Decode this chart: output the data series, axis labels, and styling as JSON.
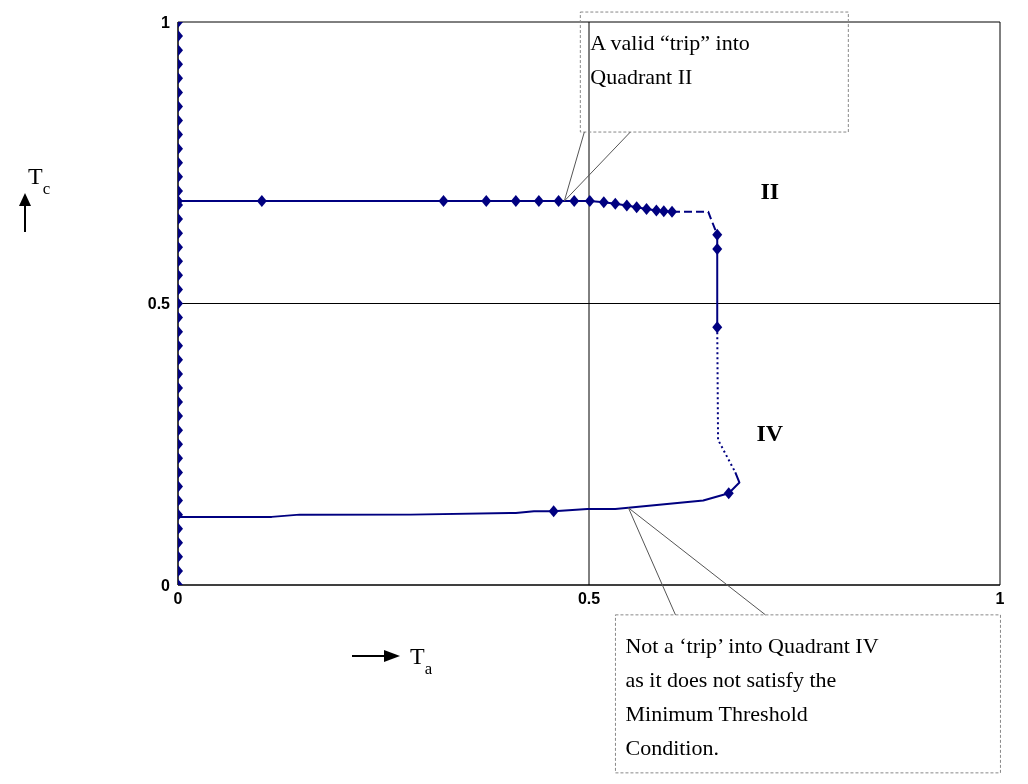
{
  "chart_data": {
    "type": "line",
    "xlabel": "T$_{a}$",
    "ylabel": "T$_{c}$",
    "xlim": [
      0,
      1
    ],
    "ylim": [
      0,
      1
    ],
    "xticks": [
      0,
      0.5,
      1
    ],
    "yticks": [
      0,
      0.5,
      1
    ],
    "grid": true,
    "series": [
      {
        "type": "scatter",
        "color": "#000080",
        "marker": "diamond",
        "x": [
          0,
          0,
          0,
          0,
          0,
          0,
          0,
          0,
          0,
          0,
          0,
          0,
          0,
          0,
          0,
          0,
          0,
          0,
          0,
          0,
          0,
          0,
          0,
          0,
          0,
          0,
          0,
          0,
          0,
          0,
          0,
          0,
          0,
          0,
          0,
          0,
          0,
          0,
          0,
          0,
          0
        ],
        "values": [
          0,
          0.025,
          0.05,
          0.075,
          0.1,
          0.125,
          0.15,
          0.175,
          0.2,
          0.225,
          0.25,
          0.275,
          0.3,
          0.325,
          0.35,
          0.375,
          0.4,
          0.425,
          0.45,
          0.475,
          0.5,
          0.525,
          0.55,
          0.575,
          0.6,
          0.625,
          0.65,
          0.675,
          0.7,
          0.725,
          0.75,
          0.775,
          0.8,
          0.825,
          0.85,
          0.875,
          0.9,
          0.925,
          0.95,
          0.975,
          1
        ]
      },
      {
        "color": "#000080",
        "marker": "diamond",
        "line_style": "solid",
        "x": [
          0,
          0.102,
          0.323,
          0.375,
          0.411,
          0.439,
          0.463,
          0.482,
          0.501,
          0.518,
          0.532,
          0.546,
          0.558,
          0.57,
          0.582,
          0.591,
          0.601
        ],
        "values": [
          0.682,
          0.682,
          0.682,
          0.682,
          0.682,
          0.682,
          0.682,
          0.682,
          0.682,
          0.68,
          0.677,
          0.674,
          0.671,
          0.668,
          0.665,
          0.664,
          0.663
        ]
      },
      {
        "type": "line",
        "color": "#000080",
        "marker": "none",
        "line_style": "dashed",
        "x": [
          0.601,
          0.645,
          0.656
        ],
        "values": [
          0.663,
          0.663,
          0.622
        ]
      },
      {
        "type": "line",
        "color": "#000080",
        "marker": "diamond",
        "line_style": "solid",
        "x": [
          0.656,
          0.656,
          0.656
        ],
        "values": [
          0.622,
          0.597,
          0.458
        ]
      },
      {
        "type": "line",
        "color": "#000080",
        "marker": "none",
        "line_style": "dotted",
        "x": [
          0.656,
          0.657,
          0.678
        ],
        "values": [
          0.458,
          0.258,
          0.2
        ]
      },
      {
        "type": "line",
        "color": "#000080",
        "marker": "none",
        "line_style": "solid",
        "x": [
          0.678,
          0.683,
          0.67,
          0.639,
          0.532,
          0.498,
          0.457,
          0.433,
          0.411,
          0.283,
          0.148,
          0.114,
          0
        ],
        "values": [
          0.2,
          0.182,
          0.163,
          0.15,
          0.135,
          0.135,
          0.131,
          0.131,
          0.128,
          0.125,
          0.125,
          0.121,
          0.121
        ]
      },
      {
        "type": "scatter",
        "color": "#000080",
        "marker": "diamond",
        "x": [
          0.67,
          0.457
        ],
        "values": [
          0.163,
          0.131
        ]
      }
    ],
    "annotations": [
      "A valid “trip” into Quadrant II",
      "Not a ‘trip’ into Quadrant IV as it does not satisfy the Minimum Threshold Condition.",
      "II",
      "IV"
    ]
  }
}
